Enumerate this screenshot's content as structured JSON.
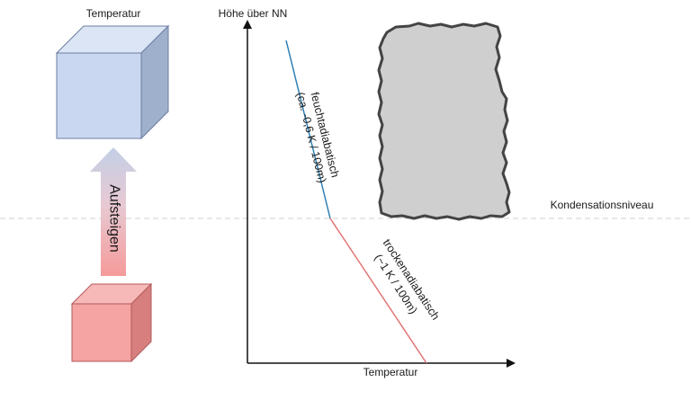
{
  "diagram": {
    "parcel_top_label": "Temperatur",
    "rise_label": "Aufsteigen",
    "y_axis_label": "Höhe über NN",
    "x_axis_label": "Temperatur",
    "condensation_label": "Kondensationsniveau",
    "moist_line": {
      "name": "feuchtadiabatisch",
      "rate": "(ca. -0,6 K / 100m)",
      "color": "#2f7fb5"
    },
    "dry_line": {
      "name": "trockenadiabatisch",
      "rate": "(~1 K / 100m)",
      "color": "#e57373"
    },
    "colors": {
      "warm_cube": "#f5a3a3",
      "cool_cube": "#c9d8f0",
      "cloud_fill": "#cfcfcf",
      "cloud_stroke": "#444444"
    }
  }
}
